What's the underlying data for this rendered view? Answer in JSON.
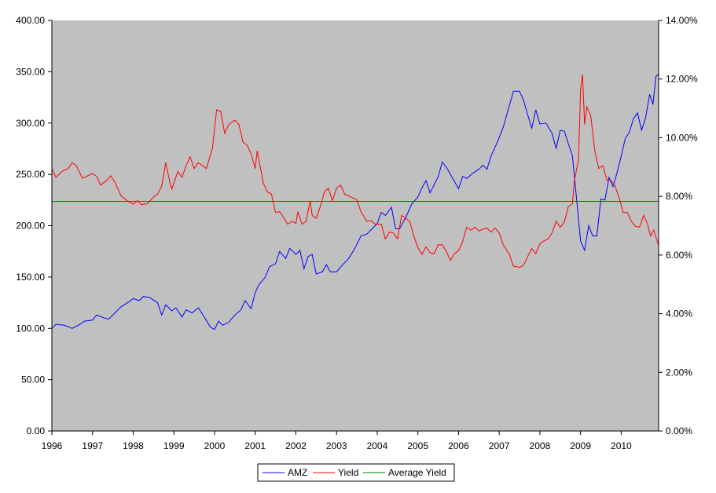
{
  "chart_data": {
    "type": "line",
    "title": "",
    "xlabel": "",
    "ylabel": "",
    "x_ticks": [
      "1996",
      "1997",
      "1998",
      "1999",
      "2000",
      "2001",
      "2002",
      "2003",
      "2004",
      "2005",
      "2006",
      "2007",
      "2008",
      "2009",
      "2010"
    ],
    "xlim": [
      1996.0,
      2010.92
    ],
    "left_axis": {
      "ylim": [
        0,
        400
      ],
      "ticks": [
        0,
        50,
        100,
        150,
        200,
        250,
        300,
        350,
        400
      ],
      "tick_labels": [
        "0.00",
        "50.00",
        "100.00",
        "150.00",
        "200.00",
        "250.00",
        "300.00",
        "350.00",
        "400.00"
      ]
    },
    "right_axis": {
      "ylim": [
        0,
        0.14
      ],
      "ticks": [
        0,
        0.02,
        0.04,
        0.06,
        0.08,
        0.1,
        0.12,
        0.14
      ],
      "tick_labels": [
        "0.00%",
        "2.00%",
        "4.00%",
        "6.00%",
        "8.00%",
        "10.00%",
        "12.00%",
        "14.00%"
      ]
    },
    "plot_background": "#c0c0c0",
    "grid": false,
    "legend_position": "bottom-center",
    "series": [
      {
        "name": "AMZ",
        "axis": "left",
        "color": "#0000ff",
        "points": [
          [
            1996.0,
            100
          ],
          [
            1996.1,
            104
          ],
          [
            1996.3,
            103
          ],
          [
            1996.5,
            100
          ],
          [
            1996.7,
            104
          ],
          [
            1996.8,
            107
          ],
          [
            1997.0,
            108
          ],
          [
            1997.1,
            113
          ],
          [
            1997.3,
            110
          ],
          [
            1997.4,
            109
          ],
          [
            1997.55,
            115
          ],
          [
            1997.7,
            121
          ],
          [
            1997.9,
            126
          ],
          [
            1998.0,
            129
          ],
          [
            1998.15,
            127
          ],
          [
            1998.25,
            131
          ],
          [
            1998.4,
            130
          ],
          [
            1998.6,
            125
          ],
          [
            1998.7,
            113
          ],
          [
            1998.8,
            123
          ],
          [
            1998.95,
            117
          ],
          [
            1999.05,
            120
          ],
          [
            1999.2,
            111
          ],
          [
            1999.3,
            118
          ],
          [
            1999.45,
            115
          ],
          [
            1999.6,
            120
          ],
          [
            1999.75,
            111
          ],
          [
            1999.9,
            101
          ],
          [
            2000.0,
            99
          ],
          [
            2000.1,
            107
          ],
          [
            2000.2,
            103
          ],
          [
            2000.35,
            106
          ],
          [
            2000.5,
            113
          ],
          [
            2000.65,
            118
          ],
          [
            2000.75,
            127
          ],
          [
            2000.9,
            119
          ],
          [
            2001.0,
            135
          ],
          [
            2001.1,
            143
          ],
          [
            2001.25,
            150
          ],
          [
            2001.35,
            160
          ],
          [
            2001.5,
            163
          ],
          [
            2001.6,
            175
          ],
          [
            2001.75,
            168
          ],
          [
            2001.85,
            178
          ],
          [
            2002.0,
            172
          ],
          [
            2002.1,
            176
          ],
          [
            2002.2,
            158
          ],
          [
            2002.3,
            170
          ],
          [
            2002.4,
            172
          ],
          [
            2002.5,
            153
          ],
          [
            2002.65,
            155
          ],
          [
            2002.75,
            162
          ],
          [
            2002.85,
            155
          ],
          [
            2003.0,
            155
          ],
          [
            2003.15,
            162
          ],
          [
            2003.3,
            168
          ],
          [
            2003.45,
            178
          ],
          [
            2003.6,
            190
          ],
          [
            2003.75,
            192
          ],
          [
            2003.9,
            198
          ],
          [
            2004.0,
            202
          ],
          [
            2004.1,
            213
          ],
          [
            2004.2,
            210
          ],
          [
            2004.35,
            218
          ],
          [
            2004.45,
            197
          ],
          [
            2004.55,
            197
          ],
          [
            2004.7,
            208
          ],
          [
            2004.85,
            221
          ],
          [
            2005.0,
            228
          ],
          [
            2005.1,
            237
          ],
          [
            2005.2,
            244
          ],
          [
            2005.3,
            232
          ],
          [
            2005.4,
            240
          ],
          [
            2005.5,
            248
          ],
          [
            2005.6,
            262
          ],
          [
            2005.7,
            257
          ],
          [
            2005.8,
            250
          ],
          [
            2005.9,
            243
          ],
          [
            2006.0,
            236
          ],
          [
            2006.1,
            248
          ],
          [
            2006.2,
            246
          ],
          [
            2006.35,
            251
          ],
          [
            2006.5,
            255
          ],
          [
            2006.6,
            259
          ],
          [
            2006.7,
            255
          ],
          [
            2006.8,
            268
          ],
          [
            2006.95,
            281
          ],
          [
            2007.1,
            296
          ],
          [
            2007.25,
            317
          ],
          [
            2007.35,
            331
          ],
          [
            2007.5,
            331
          ],
          [
            2007.6,
            322
          ],
          [
            2007.7,
            308
          ],
          [
            2007.8,
            295
          ],
          [
            2007.9,
            313
          ],
          [
            2008.0,
            299
          ],
          [
            2008.15,
            300
          ],
          [
            2008.3,
            290
          ],
          [
            2008.4,
            275
          ],
          [
            2008.5,
            293
          ],
          [
            2008.6,
            292
          ],
          [
            2008.7,
            280
          ],
          [
            2008.8,
            268
          ],
          [
            2008.9,
            227
          ],
          [
            2009.0,
            185
          ],
          [
            2009.1,
            176
          ],
          [
            2009.2,
            200
          ],
          [
            2009.3,
            190
          ],
          [
            2009.4,
            190
          ],
          [
            2009.5,
            226
          ],
          [
            2009.6,
            225
          ],
          [
            2009.7,
            247
          ],
          [
            2009.8,
            238
          ],
          [
            2009.9,
            252
          ],
          [
            2010.0,
            268
          ],
          [
            2010.1,
            285
          ],
          [
            2010.2,
            291
          ],
          [
            2010.3,
            304
          ],
          [
            2010.4,
            310
          ],
          [
            2010.5,
            293
          ],
          [
            2010.6,
            305
          ],
          [
            2010.7,
            328
          ],
          [
            2010.78,
            318
          ],
          [
            2010.85,
            345
          ],
          [
            2010.92,
            348
          ]
        ]
      },
      {
        "name": "Yield",
        "axis": "right",
        "color": "#ff0000",
        "points": [
          [
            1996.0,
            0.0895
          ],
          [
            1996.1,
            0.0865
          ],
          [
            1996.25,
            0.0885
          ],
          [
            1996.4,
            0.0895
          ],
          [
            1996.5,
            0.0915
          ],
          [
            1996.6,
            0.0905
          ],
          [
            1996.75,
            0.0862
          ],
          [
            1996.85,
            0.0868
          ],
          [
            1997.0,
            0.0878
          ],
          [
            1997.1,
            0.0868
          ],
          [
            1997.2,
            0.0838
          ],
          [
            1997.35,
            0.0855
          ],
          [
            1997.45,
            0.087
          ],
          [
            1997.55,
            0.0848
          ],
          [
            1997.7,
            0.0802
          ],
          [
            1997.85,
            0.0785
          ],
          [
            1998.0,
            0.0773
          ],
          [
            1998.1,
            0.0785
          ],
          [
            1998.2,
            0.0772
          ],
          [
            1998.35,
            0.0775
          ],
          [
            1998.5,
            0.0798
          ],
          [
            1998.6,
            0.0808
          ],
          [
            1998.7,
            0.0835
          ],
          [
            1998.8,
            0.0915
          ],
          [
            1998.9,
            0.0848
          ],
          [
            1998.95,
            0.0825
          ],
          [
            1999.1,
            0.0885
          ],
          [
            1999.2,
            0.0865
          ],
          [
            1999.3,
            0.0905
          ],
          [
            1999.4,
            0.0935
          ],
          [
            1999.5,
            0.0895
          ],
          [
            1999.6,
            0.0915
          ],
          [
            1999.7,
            0.0905
          ],
          [
            1999.8,
            0.0895
          ],
          [
            1999.95,
            0.0965
          ],
          [
            2000.05,
            0.1095
          ],
          [
            2000.15,
            0.109
          ],
          [
            2000.25,
            0.1015
          ],
          [
            2000.35,
            0.1045
          ],
          [
            2000.5,
            0.106
          ],
          [
            2000.6,
            0.1045
          ],
          [
            2000.7,
            0.0985
          ],
          [
            2000.8,
            0.0975
          ],
          [
            2000.9,
            0.0945
          ],
          [
            2001.0,
            0.0895
          ],
          [
            2001.05,
            0.0955
          ],
          [
            2001.2,
            0.0845
          ],
          [
            2001.3,
            0.0815
          ],
          [
            2001.4,
            0.0808
          ],
          [
            2001.5,
            0.0745
          ],
          [
            2001.6,
            0.0748
          ],
          [
            2001.7,
            0.0728
          ],
          [
            2001.8,
            0.0705
          ],
          [
            2001.9,
            0.0715
          ],
          [
            2002.0,
            0.0708
          ],
          [
            2002.05,
            0.0748
          ],
          [
            2002.15,
            0.0705
          ],
          [
            2002.25,
            0.0715
          ],
          [
            2002.35,
            0.0785
          ],
          [
            2002.4,
            0.0735
          ],
          [
            2002.5,
            0.0725
          ],
          [
            2002.6,
            0.0765
          ],
          [
            2002.7,
            0.0815
          ],
          [
            2002.8,
            0.0828
          ],
          [
            2002.9,
            0.0785
          ],
          [
            2003.0,
            0.0828
          ],
          [
            2003.1,
            0.0838
          ],
          [
            2003.2,
            0.0808
          ],
          [
            2003.35,
            0.0798
          ],
          [
            2003.5,
            0.0788
          ],
          [
            2003.6,
            0.0748
          ],
          [
            2003.75,
            0.0715
          ],
          [
            2003.85,
            0.0718
          ],
          [
            2003.95,
            0.0705
          ],
          [
            2004.1,
            0.0705
          ],
          [
            2004.2,
            0.0655
          ],
          [
            2004.3,
            0.0678
          ],
          [
            2004.4,
            0.0675
          ],
          [
            2004.5,
            0.0655
          ],
          [
            2004.6,
            0.0735
          ],
          [
            2004.7,
            0.0725
          ],
          [
            2004.8,
            0.0715
          ],
          [
            2004.9,
            0.0665
          ],
          [
            2005.0,
            0.0625
          ],
          [
            2005.1,
            0.0602
          ],
          [
            2005.2,
            0.0628
          ],
          [
            2005.3,
            0.0608
          ],
          [
            2005.4,
            0.0605
          ],
          [
            2005.5,
            0.0635
          ],
          [
            2005.6,
            0.0635
          ],
          [
            2005.7,
            0.0612
          ],
          [
            2005.8,
            0.0582
          ],
          [
            2005.9,
            0.0605
          ],
          [
            2006.0,
            0.0615
          ],
          [
            2006.1,
            0.0645
          ],
          [
            2006.2,
            0.0695
          ],
          [
            2006.3,
            0.0685
          ],
          [
            2006.4,
            0.0695
          ],
          [
            2006.5,
            0.0682
          ],
          [
            2006.6,
            0.0688
          ],
          [
            2006.7,
            0.0692
          ],
          [
            2006.8,
            0.0678
          ],
          [
            2006.9,
            0.0692
          ],
          [
            2007.0,
            0.0675
          ],
          [
            2007.1,
            0.0635
          ],
          [
            2007.25,
            0.0602
          ],
          [
            2007.35,
            0.0562
          ],
          [
            2007.5,
            0.0558
          ],
          [
            2007.6,
            0.0565
          ],
          [
            2007.7,
            0.0595
          ],
          [
            2007.8,
            0.0622
          ],
          [
            2007.9,
            0.0605
          ],
          [
            2008.0,
            0.0638
          ],
          [
            2008.1,
            0.0648
          ],
          [
            2008.2,
            0.0655
          ],
          [
            2008.3,
            0.0675
          ],
          [
            2008.4,
            0.0715
          ],
          [
            2008.5,
            0.0695
          ],
          [
            2008.6,
            0.0712
          ],
          [
            2008.7,
            0.0765
          ],
          [
            2008.8,
            0.0775
          ],
          [
            2008.85,
            0.0855
          ],
          [
            2008.95,
            0.0925
          ],
          [
            2009.0,
            0.1165
          ],
          [
            2009.05,
            0.1215
          ],
          [
            2009.1,
            0.1045
          ],
          [
            2009.15,
            0.1105
          ],
          [
            2009.25,
            0.1075
          ],
          [
            2009.35,
            0.0955
          ],
          [
            2009.45,
            0.0895
          ],
          [
            2009.55,
            0.0905
          ],
          [
            2009.65,
            0.0855
          ],
          [
            2009.75,
            0.0855
          ],
          [
            2009.85,
            0.0835
          ],
          [
            2009.95,
            0.0795
          ],
          [
            2010.05,
            0.0745
          ],
          [
            2010.15,
            0.0745
          ],
          [
            2010.25,
            0.0715
          ],
          [
            2010.35,
            0.0698
          ],
          [
            2010.45,
            0.0695
          ],
          [
            2010.55,
            0.0735
          ],
          [
            2010.65,
            0.0705
          ],
          [
            2010.72,
            0.0665
          ],
          [
            2010.8,
            0.0685
          ],
          [
            2010.92,
            0.0632
          ]
        ]
      },
      {
        "name": "Average Yield",
        "axis": "right",
        "color": "#008000",
        "points": [
          [
            1996.0,
            0.0783
          ],
          [
            2010.92,
            0.0783
          ]
        ]
      }
    ]
  }
}
